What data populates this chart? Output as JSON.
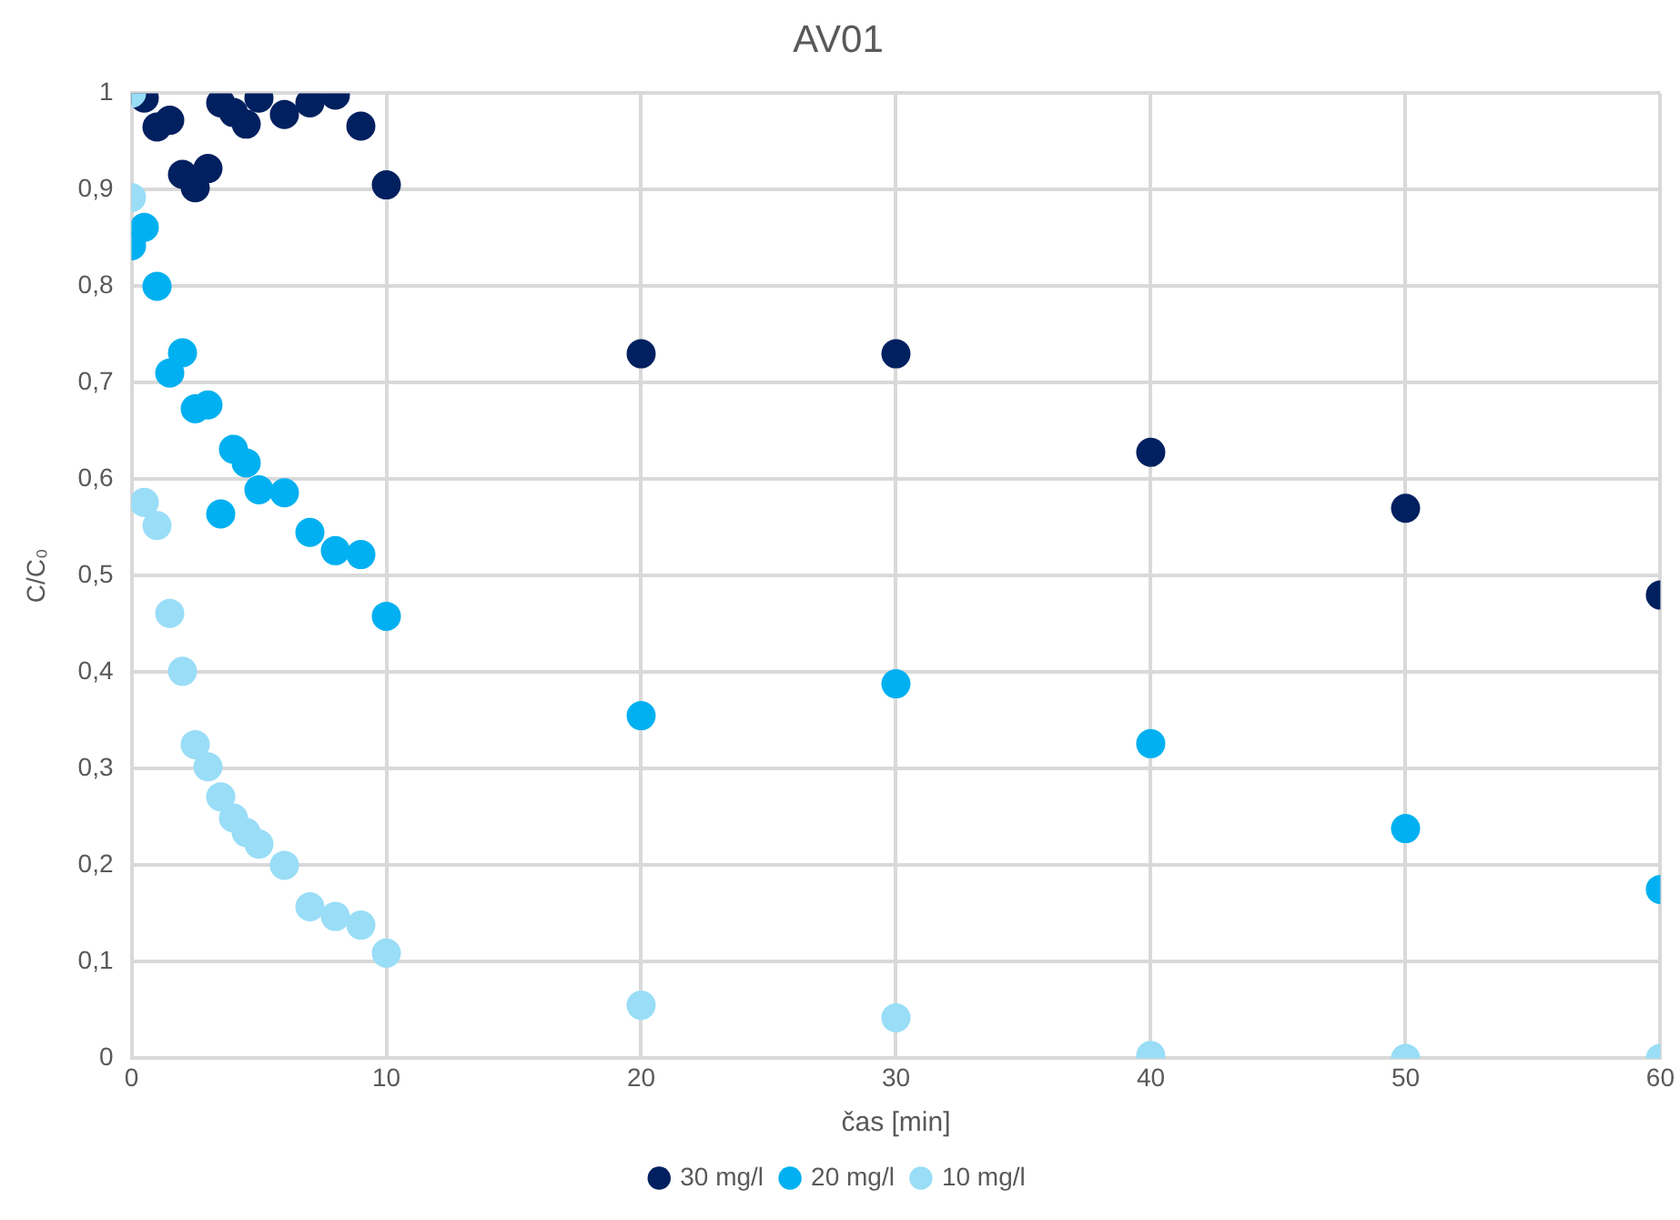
{
  "chart_data": {
    "type": "scatter",
    "title": "AV01",
    "xlabel": "čas [min]",
    "ylabel": "C/C₀",
    "x": [
      0,
      0.5,
      1,
      1.5,
      2,
      2.5,
      3,
      3.5,
      4,
      4.5,
      5,
      6,
      7,
      8,
      9,
      10,
      20,
      30,
      40,
      50,
      60
    ],
    "series": [
      {
        "name": "30 mg/l",
        "color": "#002060",
        "values": [
          null,
          0.995,
          0.965,
          0.972,
          0.916,
          0.902,
          0.922,
          0.99,
          0.98,
          0.968,
          0.995,
          0.978,
          0.99,
          0.998,
          0.966,
          0.905,
          0.73,
          0.73,
          0.628,
          0.57,
          0.48
        ]
      },
      {
        "name": "20 mg/l",
        "color": "#00b0f0",
        "values": [
          0.842,
          0.861,
          0.8,
          0.71,
          0.731,
          0.673,
          0.677,
          0.564,
          0.631,
          0.617,
          0.589,
          0.586,
          0.545,
          0.526,
          0.522,
          0.458,
          0.355,
          0.388,
          0.326,
          0.238,
          0.175
        ]
      },
      {
        "name": "10 mg/l",
        "color": "#99ddf7",
        "x": [
          0,
          0,
          0.5,
          1,
          1.5,
          2,
          2.5,
          3,
          3.5,
          4,
          4.5,
          5,
          6,
          7,
          8,
          9,
          10,
          20,
          30,
          40,
          50,
          60
        ],
        "values": [
          1,
          0.892,
          0.576,
          0.552,
          0.461,
          0.401,
          0.325,
          0.302,
          0.271,
          0.249,
          0.234,
          0.222,
          0.2,
          0.157,
          0.147,
          0.138,
          0.109,
          0.055,
          0.042,
          0.003,
          0,
          0
        ]
      }
    ],
    "xlim": [
      0,
      60
    ],
    "xticks": [
      0,
      10,
      20,
      30,
      40,
      50,
      60
    ],
    "ylim": [
      0,
      1
    ],
    "yticks": [
      0,
      {
        "value": 0.1,
        "label": "0,1"
      },
      {
        "value": 0.2,
        "label": "0,2"
      },
      {
        "value": 0.3,
        "label": "0,3"
      },
      {
        "value": 0.4,
        "label": "0,4"
      },
      {
        "value": 0.5,
        "label": "0,5"
      },
      {
        "value": 0.6,
        "label": "0,6"
      },
      {
        "value": 0.7,
        "label": "0,7"
      },
      {
        "value": 0.8,
        "label": "0,8"
      },
      {
        "value": 0.9,
        "label": "0,9"
      },
      1
    ],
    "grid": true,
    "legend": "bottom",
    "marker": "circle"
  }
}
